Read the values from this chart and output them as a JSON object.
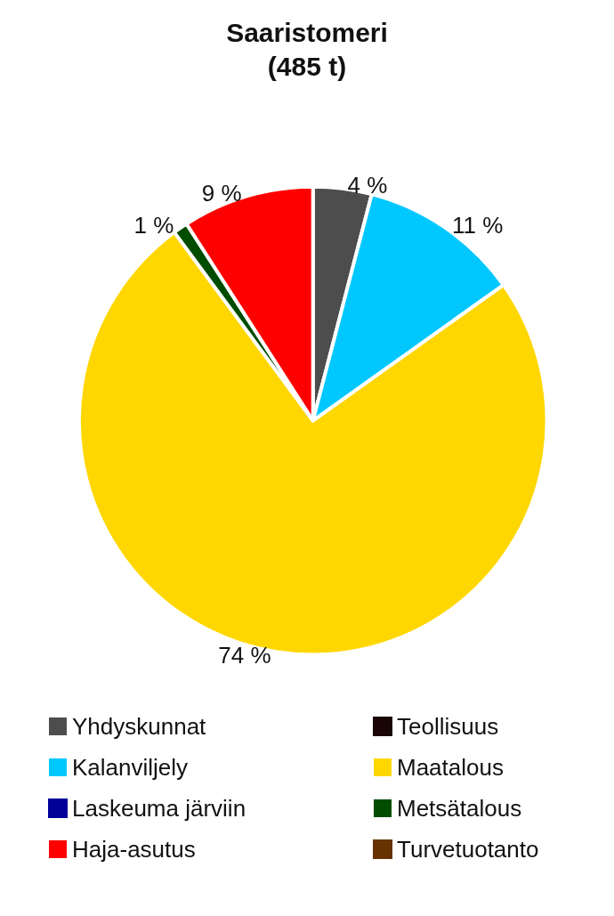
{
  "chart_data": {
    "type": "pie",
    "title": "Saaristomeri",
    "subtitle": "(485 t)",
    "categories": [
      "Yhdyskunnat",
      "Teollisuus",
      "Kalanviljely",
      "Maatalous",
      "Laskeuma järviin",
      "Metsätalous",
      "Haja-asutus",
      "Turvetuotanto"
    ],
    "values": [
      4,
      0,
      11,
      74,
      0,
      1,
      9,
      0
    ],
    "value_labels": [
      "4 %",
      null,
      "11 %",
      "74 %",
      null,
      "1 %",
      "9 %",
      null
    ],
    "colors": [
      "#4d4d4d",
      "#1a0505",
      "#00c8ff",
      "#ffd700",
      "#000099",
      "#004d00",
      "#ff0000",
      "#663300"
    ],
    "legend": "bottom"
  }
}
